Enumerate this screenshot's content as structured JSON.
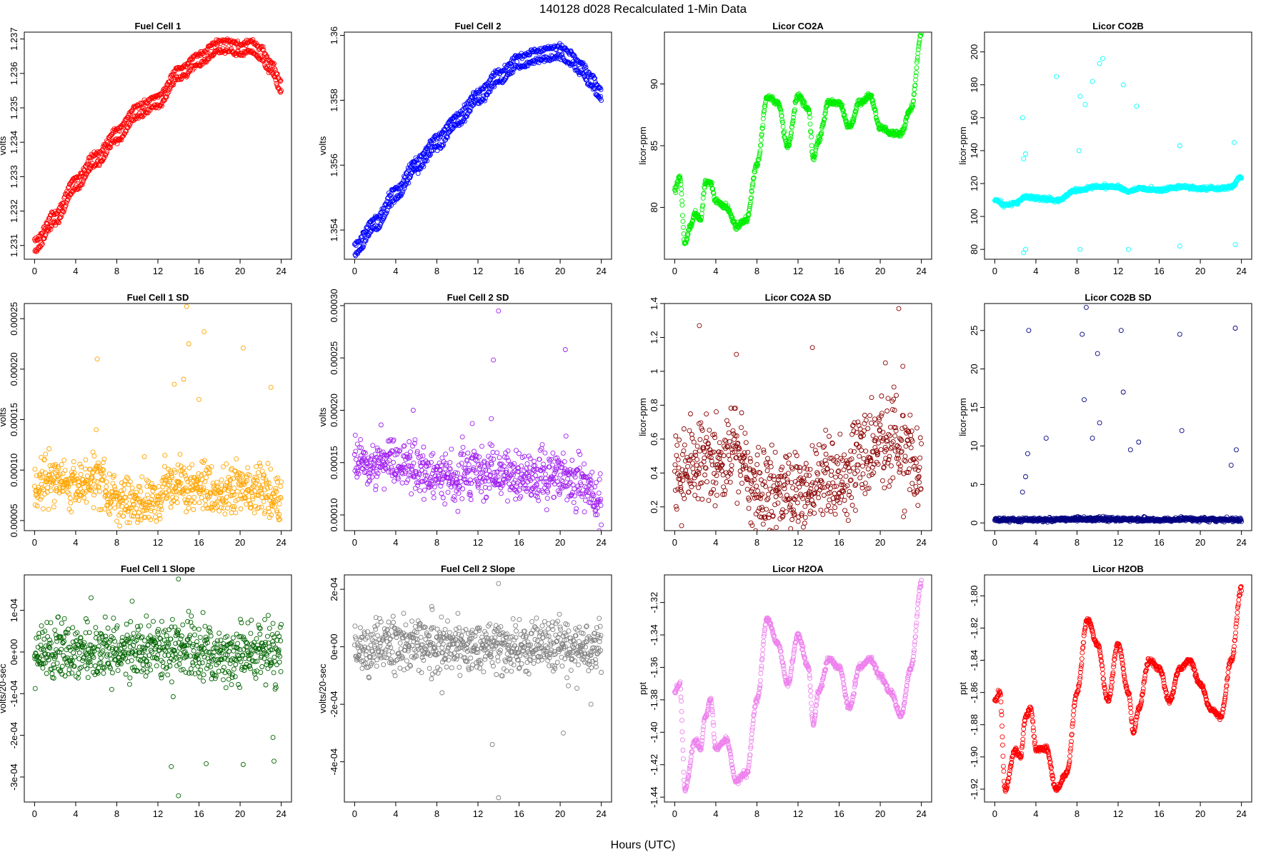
{
  "figure": {
    "title": "140128    d028    Recalculated 1-Min Data",
    "xlabel": "Hours (UTC)"
  },
  "chart_data": [
    {
      "type": "scatter",
      "title": "Fuel Cell 1",
      "ylabel": "volts",
      "color": "#ff0000",
      "ylim": [
        1.2306,
        1.2372
      ],
      "yticks": [
        1.231,
        1.232,
        1.233,
        1.234,
        1.235,
        1.236,
        1.237
      ],
      "xlim": [
        -1,
        25
      ],
      "xticks": [
        0,
        4,
        8,
        12,
        16,
        20,
        24
      ],
      "shape": "trend2",
      "x": [
        0,
        2,
        4,
        6,
        8,
        10,
        12,
        14,
        16,
        18,
        19,
        20,
        21,
        22,
        23,
        24
      ],
      "y": [
        1.231,
        1.2318,
        1.2328,
        1.2335,
        1.2342,
        1.2349,
        1.2352,
        1.236,
        1.2364,
        1.2368,
        1.2368,
        1.2367,
        1.2368,
        1.2366,
        1.2362,
        1.2356
      ]
    },
    {
      "type": "scatter",
      "title": "Fuel Cell 2",
      "ylabel": "volts",
      "color": "#0000ff",
      "ylim": [
        1.3531,
        1.3601
      ],
      "yticks": [
        1.354,
        1.356,
        1.358,
        1.36
      ],
      "xlim": [
        -1,
        25
      ],
      "xticks": [
        0,
        4,
        8,
        12,
        16,
        20,
        24
      ],
      "shape": "trend2",
      "x": [
        0,
        2,
        4,
        6,
        8,
        10,
        12,
        14,
        16,
        18,
        20,
        21,
        22,
        23,
        24
      ],
      "y": [
        1.3534,
        1.3542,
        1.3551,
        1.356,
        1.3567,
        1.3574,
        1.3581,
        1.3587,
        1.3592,
        1.3594,
        1.3595,
        1.3593,
        1.359,
        1.3586,
        1.3582
      ]
    },
    {
      "type": "scatter",
      "title": "Licor CO2A",
      "ylabel": "licor-ppm",
      "color": "#00ee00",
      "ylim": [
        75.8,
        94.2
      ],
      "yticks": [
        80,
        85,
        90
      ],
      "xlim": [
        -1,
        25
      ],
      "xticks": [
        0,
        4,
        8,
        12,
        16,
        20,
        24
      ],
      "shape": "smooth",
      "x": [
        0,
        0.5,
        1,
        1.5,
        2,
        2.5,
        3,
        3.5,
        4,
        5,
        6,
        7,
        8,
        9,
        10,
        11,
        12,
        13,
        13.5,
        14,
        15,
        16,
        17,
        18,
        19,
        20,
        21,
        22,
        23,
        24
      ],
      "y": [
        81.5,
        82.5,
        77.0,
        78.5,
        79.5,
        79.0,
        82.0,
        82.0,
        80.5,
        80.0,
        78.5,
        79.0,
        83.5,
        89.0,
        88.5,
        85.0,
        89.0,
        88.0,
        84.0,
        85.5,
        88.5,
        88.5,
        86.5,
        88.5,
        89.0,
        86.5,
        86.0,
        86.0,
        88.0,
        94.0
      ]
    },
    {
      "type": "scatter",
      "title": "Licor CO2B",
      "ylabel": "licor-ppm",
      "color": "#00ffff",
      "ylim": [
        74,
        212
      ],
      "yticks": [
        80,
        100,
        120,
        140,
        160,
        180,
        200
      ],
      "xlim": [
        -1,
        25
      ],
      "xticks": [
        0,
        4,
        8,
        12,
        16,
        20,
        24
      ],
      "shape": "baseline_outliers",
      "x": [
        0,
        1,
        2,
        3,
        4,
        6,
        8,
        10,
        12,
        13,
        14,
        16,
        18,
        20,
        22,
        23,
        24
      ],
      "y": [
        110,
        107,
        108,
        112,
        111,
        110,
        116,
        118,
        118,
        115,
        117,
        116,
        118,
        117,
        117,
        118,
        124
      ],
      "outliers_x": [
        2.7,
        2.8,
        3.0,
        6.0,
        8.3,
        8.8,
        9.5,
        10.2,
        10.5,
        12.5,
        13.8,
        8.2,
        3.0,
        13.0,
        18.0,
        18.0,
        8.3,
        2.8,
        23.3,
        23.4
      ],
      "outliers_y": [
        160,
        135,
        138,
        185,
        173,
        168,
        182,
        193,
        196,
        180,
        167,
        140,
        80,
        80,
        143,
        82,
        80,
        78,
        145,
        83
      ]
    },
    {
      "type": "scatter",
      "title": "Fuel Cell 1 SD",
      "ylabel": "volts",
      "color": "#ffa500",
      "ylim": [
        4e-05,
        0.000265
      ],
      "yticks": [
        5e-05,
        0.0001,
        0.00015,
        0.0002,
        0.00025
      ],
      "ytick_labels": [
        "0.00005",
        "0.00010",
        "0.00015",
        "0.00020",
        "0.00025"
      ],
      "xlim": [
        -1,
        25
      ],
      "xticks": [
        0,
        4,
        8,
        12,
        16,
        20,
        24
      ],
      "shape": "noisy",
      "x": [
        0,
        2,
        4,
        6,
        8,
        10,
        12,
        13,
        14,
        15,
        16,
        18,
        20,
        22,
        24
      ],
      "y": [
        8e-05,
        9e-05,
        8.5e-05,
        9e-05,
        7e-05,
        6.5e-05,
        7e-05,
        8e-05,
        9e-05,
        8e-05,
        8.5e-05,
        8e-05,
        8.5e-05,
        8e-05,
        7e-05
      ],
      "spread": 1.2e-05,
      "outliers_x": [
        6.1,
        14.8,
        15.0,
        16.5,
        20.3,
        13.6,
        14.5,
        16.0,
        23.0,
        6.0
      ],
      "outliers_y": [
        0.00021,
        0.000262,
        0.000225,
        0.000237,
        0.000221,
        0.000185,
        0.00019,
        0.00017,
        0.000182,
        0.00014
      ]
    },
    {
      "type": "scatter",
      "title": "Fuel Cell 2 SD",
      "ylabel": "volts",
      "color": "#a020f0",
      "ylim": [
        8.5e-05,
        0.000302
      ],
      "yticks": [
        0.0001,
        0.00015,
        0.0002,
        0.00025,
        0.0003
      ],
      "ytick_labels": [
        "0.00010",
        "0.00015",
        "0.00020",
        "0.00025",
        "0.00030"
      ],
      "xlim": [
        -1,
        25
      ],
      "xticks": [
        0,
        4,
        8,
        12,
        16,
        20,
        24
      ],
      "shape": "noisy",
      "x": [
        0,
        2,
        4,
        6,
        8,
        10,
        12,
        14,
        16,
        18,
        20,
        22,
        24
      ],
      "y": [
        0.00015,
        0.00015,
        0.000155,
        0.000145,
        0.000135,
        0.000135,
        0.00014,
        0.00014,
        0.000135,
        0.000135,
        0.00014,
        0.00013,
        0.00011
      ],
      "spread": 1.2e-05,
      "outliers_x": [
        14.0,
        13.5,
        20.5,
        13.3,
        5.7
      ],
      "outliers_y": [
        0.000295,
        0.000248,
        0.000258,
        0.000192,
        0.0002
      ]
    },
    {
      "type": "scatter",
      "title": "Licor CO2A SD",
      "ylabel": "licor-ppm",
      "color": "#8b0000",
      "ylim": [
        0.06,
        1.4
      ],
      "yticks": [
        0.2,
        0.4,
        0.6,
        0.8,
        1.0,
        1.2,
        1.4
      ],
      "xlim": [
        -1,
        25
      ],
      "xticks": [
        0,
        4,
        8,
        12,
        16,
        20,
        24
      ],
      "shape": "noisy",
      "x": [
        0,
        2,
        4,
        6,
        8,
        10,
        12,
        14,
        16,
        18,
        20,
        22,
        24
      ],
      "y": [
        0.4,
        0.45,
        0.45,
        0.55,
        0.3,
        0.3,
        0.28,
        0.35,
        0.32,
        0.5,
        0.6,
        0.55,
        0.35
      ],
      "spread": 0.13,
      "outliers_x": [
        2.4,
        21.8,
        13.4,
        6.0,
        20.5
      ],
      "outliers_y": [
        1.27,
        1.37,
        1.14,
        1.1,
        1.05
      ]
    },
    {
      "type": "scatter",
      "title": "Licor CO2B SD",
      "ylabel": "licor-ppm",
      "color": "#000080",
      "ylim": [
        -1,
        28.5
      ],
      "yticks": [
        0,
        5,
        10,
        15,
        20,
        25
      ],
      "xlim": [
        -1,
        25
      ],
      "xticks": [
        0,
        4,
        8,
        12,
        16,
        20,
        24
      ],
      "shape": "baseline_outliers",
      "x": [
        0,
        4,
        8,
        12,
        16,
        20,
        24
      ],
      "y": [
        0.4,
        0.4,
        0.5,
        0.5,
        0.4,
        0.5,
        0.4
      ],
      "outliers_x": [
        3.3,
        8.9,
        8.5,
        10.0,
        12.3,
        3.2,
        12.5,
        18.0,
        23.4,
        23.5,
        10.2,
        8.7,
        3.0,
        5.0,
        9.5,
        14.0,
        13.2,
        18.2,
        23.0,
        2.7
      ],
      "outliers_y": [
        25,
        28,
        24.5,
        22,
        25,
        9,
        17,
        24.5,
        25.3,
        9.5,
        13,
        16,
        6,
        11,
        11,
        10.5,
        9.5,
        12,
        7.5,
        4
      ]
    },
    {
      "type": "scatter",
      "title": "Fuel Cell 1 Slope",
      "ylabel": "volts/20-sec",
      "color": "#006400",
      "ylim": [
        -0.00036,
        0.000185
      ],
      "yticks": [
        -0.0003,
        -0.0002,
        -0.0001,
        0,
        0.0001
      ],
      "ytick_labels": [
        "-3e-04",
        "-2e-04",
        "-1e-04",
        "0e+00",
        "1e-04"
      ],
      "xlim": [
        -1,
        25
      ],
      "xticks": [
        0,
        4,
        8,
        12,
        16,
        20,
        24
      ],
      "shape": "noisy",
      "x": [
        0,
        12,
        24
      ],
      "y": [
        0,
        0,
        0
      ],
      "spread": 3.5e-05,
      "outliers_x": [
        14.0,
        14.0,
        13.3,
        16.7,
        20.3,
        23.2,
        23.3,
        5.5,
        9.5
      ],
      "outliers_y": [
        0.000175,
        -0.000345,
        -0.000275,
        -0.000268,
        -0.00027,
        -0.000205,
        -0.000262,
        0.00013,
        0.000122
      ]
    },
    {
      "type": "scatter",
      "title": "Fuel Cell 2 Slope",
      "ylabel": "volts/20-sec",
      "color": "#808080",
      "ylim": [
        -0.00054,
        0.00025
      ],
      "yticks": [
        -0.0004,
        -0.0002,
        0,
        0.0002
      ],
      "ytick_labels": [
        "-4e-04",
        "-2e-04",
        "0e+00",
        "2e-04"
      ],
      "xlim": [
        -1,
        25
      ],
      "xticks": [
        0,
        4,
        8,
        12,
        16,
        20,
        24
      ],
      "shape": "noisy",
      "x": [
        0,
        12,
        24
      ],
      "y": [
        0,
        0,
        0
      ],
      "spread": 4.5e-05,
      "outliers_x": [
        14.0,
        14.0,
        13.4,
        20.3,
        23.0,
        7.5,
        8.5
      ],
      "outliers_y": [
        0.00022,
        -0.000525,
        -0.00034,
        -0.0003,
        -0.0002,
        0.00014,
        -0.00016
      ]
    },
    {
      "type": "scatter",
      "title": "Licor H2OA",
      "ylabel": "ppt",
      "color": "#ee82ee",
      "ylim": [
        -1.443,
        -1.303
      ],
      "yticks": [
        -1.44,
        -1.42,
        -1.4,
        -1.38,
        -1.36,
        -1.34,
        -1.32
      ],
      "ytick_labels": [
        "-1.44",
        "-1.42",
        "-1.40",
        "-1.38",
        "-1.36",
        "-1.34",
        "-1.32"
      ],
      "xlim": [
        -1,
        25
      ],
      "xticks": [
        0,
        4,
        8,
        12,
        16,
        20,
        24
      ],
      "shape": "smooth",
      "x": [
        0,
        0.5,
        1,
        2,
        2.5,
        3,
        3.5,
        4,
        5,
        6,
        7,
        8,
        9,
        10,
        11,
        12,
        13,
        13.5,
        14,
        15,
        16,
        17,
        18,
        19,
        20,
        21,
        22,
        23,
        24
      ],
      "y": [
        -1.375,
        -1.37,
        -1.435,
        -1.405,
        -1.41,
        -1.39,
        -1.38,
        -1.41,
        -1.405,
        -1.43,
        -1.425,
        -1.38,
        -1.33,
        -1.345,
        -1.37,
        -1.34,
        -1.36,
        -1.395,
        -1.375,
        -1.355,
        -1.36,
        -1.385,
        -1.36,
        -1.355,
        -1.365,
        -1.375,
        -1.39,
        -1.36,
        -1.308
      ]
    },
    {
      "type": "scatter",
      "title": "Licor H2OB",
      "ylabel": "ppt",
      "color": "#ff0000",
      "ylim": [
        -1.928,
        -1.787
      ],
      "yticks": [
        -1.92,
        -1.9,
        -1.88,
        -1.86,
        -1.84,
        -1.82,
        -1.8
      ],
      "ytick_labels": [
        "-1.92",
        "-1.90",
        "-1.88",
        "-1.86",
        "-1.84",
        "-1.82",
        "-1.80"
      ],
      "xlim": [
        -1,
        25
      ],
      "xticks": [
        0,
        4,
        8,
        12,
        16,
        20,
        24
      ],
      "shape": "smooth",
      "x": [
        0,
        0.5,
        1,
        2,
        2.5,
        3,
        3.5,
        4,
        5,
        6,
        7,
        8,
        9,
        10,
        11,
        12,
        13,
        13.5,
        14,
        15,
        16,
        17,
        18,
        19,
        20,
        21,
        22,
        23,
        24
      ],
      "y": [
        -1.865,
        -1.86,
        -1.92,
        -1.895,
        -1.9,
        -1.875,
        -1.87,
        -1.895,
        -1.895,
        -1.92,
        -1.91,
        -1.86,
        -1.815,
        -1.83,
        -1.865,
        -1.83,
        -1.86,
        -1.885,
        -1.87,
        -1.84,
        -1.845,
        -1.865,
        -1.845,
        -1.84,
        -1.855,
        -1.87,
        -1.875,
        -1.84,
        -1.795
      ]
    }
  ]
}
